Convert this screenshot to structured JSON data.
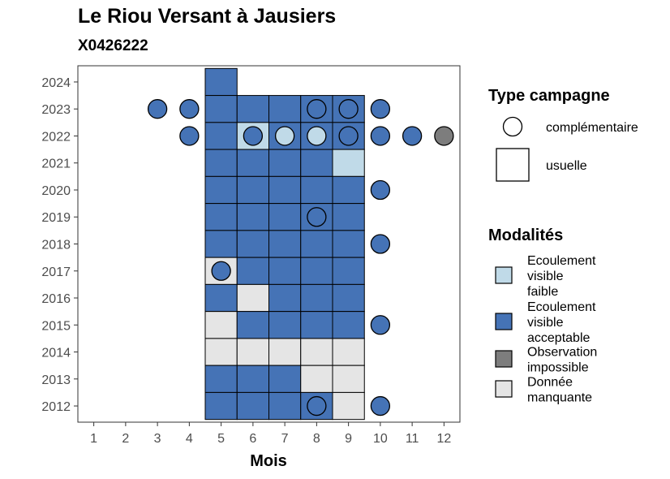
{
  "chart_data": {
    "type": "heatmap",
    "title": "Le Riou Versant à Jausiers",
    "subtitle": "X0426222",
    "xlabel": "Mois",
    "ylabel": "",
    "x_ticks": [
      1,
      2,
      3,
      4,
      5,
      6,
      7,
      8,
      9,
      10,
      11,
      12
    ],
    "y_ticks": [
      2012,
      2013,
      2014,
      2015,
      2016,
      2017,
      2018,
      2019,
      2020,
      2021,
      2022,
      2023,
      2024
    ],
    "xlim": [
      0.5,
      12.5
    ],
    "ylim": [
      2011.4,
      2024.6
    ],
    "grid": false,
    "legend_type": {
      "title": "Type campagne",
      "items": [
        {
          "key": "complementaire",
          "label": "complémentaire",
          "shape": "circle"
        },
        {
          "key": "usuelle",
          "label": "usuelle",
          "shape": "square"
        }
      ]
    },
    "legend_modalites": {
      "title": "Modalités",
      "items": [
        {
          "key": "faible",
          "label_lines": [
            "Ecoulement",
            "visible",
            "faible"
          ],
          "color": "#c0dae8"
        },
        {
          "key": "acceptable",
          "label_lines": [
            "Ecoulement",
            "visible",
            "acceptable"
          ],
          "color": "#4573b6"
        },
        {
          "key": "impossible",
          "label_lines": [
            "Observation",
            "impossible"
          ],
          "color": "#7d7d7d"
        },
        {
          "key": "manquante",
          "label_lines": [
            "Donnée",
            "manquante"
          ],
          "color": "#e5e5e5"
        }
      ]
    },
    "usuelle": [
      {
        "month": 5,
        "year": 2024,
        "value": "acceptable"
      },
      {
        "month": 5,
        "year": 2023,
        "value": "acceptable"
      },
      {
        "month": 6,
        "year": 2023,
        "value": "acceptable"
      },
      {
        "month": 7,
        "year": 2023,
        "value": "acceptable"
      },
      {
        "month": 8,
        "year": 2023,
        "value": "acceptable"
      },
      {
        "month": 9,
        "year": 2023,
        "value": "acceptable"
      },
      {
        "month": 5,
        "year": 2022,
        "value": "acceptable"
      },
      {
        "month": 6,
        "year": 2022,
        "value": "faible"
      },
      {
        "month": 7,
        "year": 2022,
        "value": "acceptable"
      },
      {
        "month": 8,
        "year": 2022,
        "value": "acceptable"
      },
      {
        "month": 9,
        "year": 2022,
        "value": "acceptable"
      },
      {
        "month": 5,
        "year": 2021,
        "value": "acceptable"
      },
      {
        "month": 6,
        "year": 2021,
        "value": "acceptable"
      },
      {
        "month": 7,
        "year": 2021,
        "value": "acceptable"
      },
      {
        "month": 8,
        "year": 2021,
        "value": "acceptable"
      },
      {
        "month": 9,
        "year": 2021,
        "value": "faible"
      },
      {
        "month": 5,
        "year": 2020,
        "value": "acceptable"
      },
      {
        "month": 6,
        "year": 2020,
        "value": "acceptable"
      },
      {
        "month": 7,
        "year": 2020,
        "value": "acceptable"
      },
      {
        "month": 8,
        "year": 2020,
        "value": "acceptable"
      },
      {
        "month": 9,
        "year": 2020,
        "value": "acceptable"
      },
      {
        "month": 5,
        "year": 2019,
        "value": "acceptable"
      },
      {
        "month": 6,
        "year": 2019,
        "value": "acceptable"
      },
      {
        "month": 7,
        "year": 2019,
        "value": "acceptable"
      },
      {
        "month": 8,
        "year": 2019,
        "value": "acceptable"
      },
      {
        "month": 9,
        "year": 2019,
        "value": "acceptable"
      },
      {
        "month": 5,
        "year": 2018,
        "value": "acceptable"
      },
      {
        "month": 6,
        "year": 2018,
        "value": "acceptable"
      },
      {
        "month": 7,
        "year": 2018,
        "value": "acceptable"
      },
      {
        "month": 8,
        "year": 2018,
        "value": "acceptable"
      },
      {
        "month": 9,
        "year": 2018,
        "value": "acceptable"
      },
      {
        "month": 5,
        "year": 2017,
        "value": "manquante"
      },
      {
        "month": 6,
        "year": 2017,
        "value": "acceptable"
      },
      {
        "month": 7,
        "year": 2017,
        "value": "acceptable"
      },
      {
        "month": 8,
        "year": 2017,
        "value": "acceptable"
      },
      {
        "month": 9,
        "year": 2017,
        "value": "acceptable"
      },
      {
        "month": 5,
        "year": 2016,
        "value": "acceptable"
      },
      {
        "month": 6,
        "year": 2016,
        "value": "manquante"
      },
      {
        "month": 7,
        "year": 2016,
        "value": "acceptable"
      },
      {
        "month": 8,
        "year": 2016,
        "value": "acceptable"
      },
      {
        "month": 9,
        "year": 2016,
        "value": "acceptable"
      },
      {
        "month": 5,
        "year": 2015,
        "value": "manquante"
      },
      {
        "month": 6,
        "year": 2015,
        "value": "acceptable"
      },
      {
        "month": 7,
        "year": 2015,
        "value": "acceptable"
      },
      {
        "month": 8,
        "year": 2015,
        "value": "acceptable"
      },
      {
        "month": 9,
        "year": 2015,
        "value": "acceptable"
      },
      {
        "month": 5,
        "year": 2014,
        "value": "manquante"
      },
      {
        "month": 6,
        "year": 2014,
        "value": "manquante"
      },
      {
        "month": 7,
        "year": 2014,
        "value": "manquante"
      },
      {
        "month": 8,
        "year": 2014,
        "value": "manquante"
      },
      {
        "month": 9,
        "year": 2014,
        "value": "manquante"
      },
      {
        "month": 5,
        "year": 2013,
        "value": "acceptable"
      },
      {
        "month": 6,
        "year": 2013,
        "value": "acceptable"
      },
      {
        "month": 7,
        "year": 2013,
        "value": "acceptable"
      },
      {
        "month": 8,
        "year": 2013,
        "value": "manquante"
      },
      {
        "month": 9,
        "year": 2013,
        "value": "manquante"
      },
      {
        "month": 5,
        "year": 2012,
        "value": "acceptable"
      },
      {
        "month": 6,
        "year": 2012,
        "value": "acceptable"
      },
      {
        "month": 7,
        "year": 2012,
        "value": "acceptable"
      },
      {
        "month": 8,
        "year": 2012,
        "value": "acceptable"
      },
      {
        "month": 9,
        "year": 2012,
        "value": "manquante"
      }
    ],
    "complementaire": [
      {
        "month": 3,
        "year": 2023,
        "value": "acceptable"
      },
      {
        "month": 4,
        "year": 2023,
        "value": "acceptable"
      },
      {
        "month": 8,
        "year": 2023,
        "value": "acceptable"
      },
      {
        "month": 9,
        "year": 2023,
        "value": "acceptable"
      },
      {
        "month": 10,
        "year": 2023,
        "value": "acceptable"
      },
      {
        "month": 4,
        "year": 2022,
        "value": "acceptable"
      },
      {
        "month": 6,
        "year": 2022,
        "value": "acceptable"
      },
      {
        "month": 7,
        "year": 2022,
        "value": "faible"
      },
      {
        "month": 8,
        "year": 2022,
        "value": "faible"
      },
      {
        "month": 9,
        "year": 2022,
        "value": "acceptable"
      },
      {
        "month": 10,
        "year": 2022,
        "value": "acceptable"
      },
      {
        "month": 11,
        "year": 2022,
        "value": "acceptable"
      },
      {
        "month": 12,
        "year": 2022,
        "value": "impossible"
      },
      {
        "month": 10,
        "year": 2020,
        "value": "acceptable"
      },
      {
        "month": 8,
        "year": 2019,
        "value": "acceptable"
      },
      {
        "month": 10,
        "year": 2018,
        "value": "acceptable"
      },
      {
        "month": 5,
        "year": 2017,
        "value": "acceptable"
      },
      {
        "month": 10,
        "year": 2015,
        "value": "acceptable"
      },
      {
        "month": 8,
        "year": 2012,
        "value": "acceptable"
      },
      {
        "month": 10,
        "year": 2012,
        "value": "acceptable"
      }
    ]
  }
}
